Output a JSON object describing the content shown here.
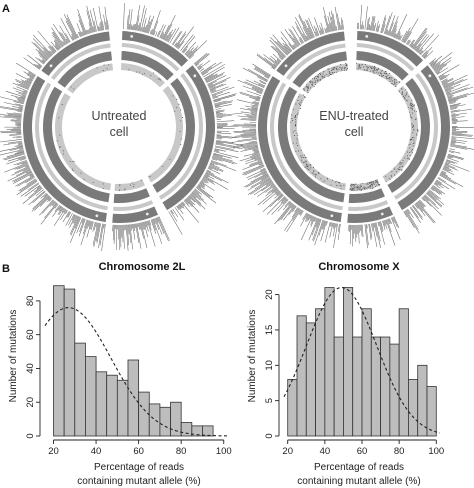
{
  "panel_a": {
    "letter": "A",
    "circos": [
      {
        "name": "untreated",
        "label_lines": [
          "Untreated",
          "cell"
        ]
      },
      {
        "name": "enu",
        "label_lines": [
          "ENU-treated",
          "cell"
        ]
      }
    ]
  },
  "panel_b": {
    "letter": "B"
  },
  "chart_data": [
    {
      "type": "bar",
      "title": "Chromosome 2L",
      "xlabel": "Percentage of reads containing mutant allele (%)",
      "xlabel_lines": [
        "Percentage of reads",
        "containing mutant allele (%)"
      ],
      "ylabel": "Number of mutations",
      "bin_width": 5,
      "bins": [
        20,
        25,
        30,
        35,
        40,
        45,
        50,
        55,
        60,
        65,
        70,
        75,
        80,
        85,
        90
      ],
      "values": [
        89,
        87,
        55,
        47,
        38,
        36,
        33,
        45,
        26,
        19,
        17,
        20,
        8,
        6,
        6
      ],
      "xlim": [
        16,
        102
      ],
      "ylim": [
        0,
        90
      ],
      "xticks": [
        20,
        40,
        60,
        80,
        100
      ],
      "yticks": [
        0,
        20,
        40,
        60,
        80
      ],
      "curve": {
        "style": "dashed",
        "mean": 27,
        "sd": 20,
        "peak": 76
      },
      "grid": false
    },
    {
      "type": "bar",
      "title": "Chromosome X",
      "xlabel": "Percentage of reads containing mutant allele (%)",
      "xlabel_lines": [
        "Percentage of reads",
        "containing mutant allele (%)"
      ],
      "ylabel": "Number of mutations",
      "bin_width": 5,
      "bins": [
        20,
        25,
        30,
        35,
        40,
        45,
        50,
        55,
        60,
        65,
        70,
        75,
        80,
        85,
        90,
        95
      ],
      "values": [
        8,
        17,
        16,
        18,
        21,
        14,
        21,
        14,
        18,
        14,
        14,
        13,
        18,
        8,
        10,
        7
      ],
      "xlim": [
        18,
        102
      ],
      "ylim": [
        0,
        21.5
      ],
      "xticks": [
        20,
        40,
        60,
        80,
        100
      ],
      "yticks": [
        0,
        5,
        10,
        15,
        20
      ],
      "curve": {
        "style": "dashed",
        "mean": 49,
        "sd": 19,
        "peak": 21
      },
      "grid": false
    }
  ],
  "colors": {
    "bar_fill": "#bdbdbd",
    "bar_edge": "#333333",
    "ring_dark": "#7a7a7a",
    "ring_light": "#c8c8c8",
    "track": "#666666"
  }
}
